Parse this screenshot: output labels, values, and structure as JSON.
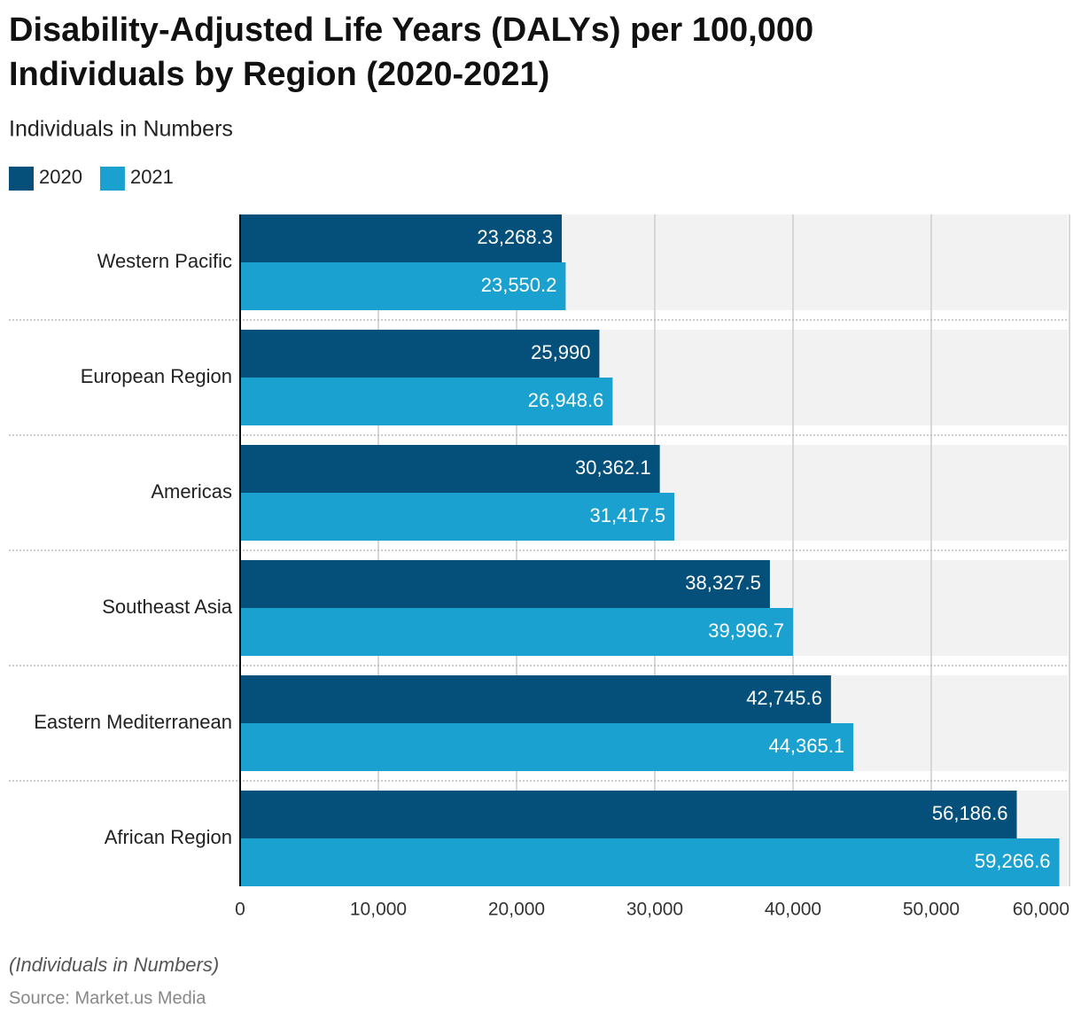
{
  "chart_data": {
    "type": "bar",
    "orientation": "horizontal",
    "title": "Disability-Adjusted Life Years (DALYs) per 100,000 Individuals by Region (2020-2021)",
    "subtitle": "Individuals in Numbers",
    "note": "(Individuals in Numbers)",
    "source": "Source: Market.us Media",
    "categories": [
      "Western Pacific",
      "European Region",
      "Americas",
      "Southeast Asia",
      "Eastern Mediterranean",
      "African Region"
    ],
    "series": [
      {
        "name": "2020",
        "color": "#04507a",
        "values": [
          23268.3,
          25990,
          30362.1,
          38327.5,
          42745.6,
          56186.6
        ],
        "value_labels": [
          "23,268.3",
          "25,990",
          "30,362.1",
          "38,327.5",
          "42,745.6",
          "56,186.6"
        ]
      },
      {
        "name": "2021",
        "color": "#1ba1cf",
        "values": [
          23550.2,
          26948.6,
          31417.5,
          39996.7,
          44365.1,
          59266.6
        ],
        "value_labels": [
          "23,550.2",
          "26,948.6",
          "31,417.5",
          "39,996.7",
          "44,365.1",
          "59,266.6"
        ]
      }
    ],
    "xlim": [
      0,
      60000
    ],
    "xticks": [
      0,
      {
        "value": 10000,
        "label": "10,000"
      },
      {
        "value": 20000,
        "label": "20,000"
      },
      {
        "value": 30000,
        "label": "30,000"
      },
      {
        "value": 40000,
        "label": "40,000"
      },
      {
        "value": 50000,
        "label": "50,000"
      },
      {
        "value": 60000,
        "label": "60,000"
      }
    ],
    "grid": true
  }
}
